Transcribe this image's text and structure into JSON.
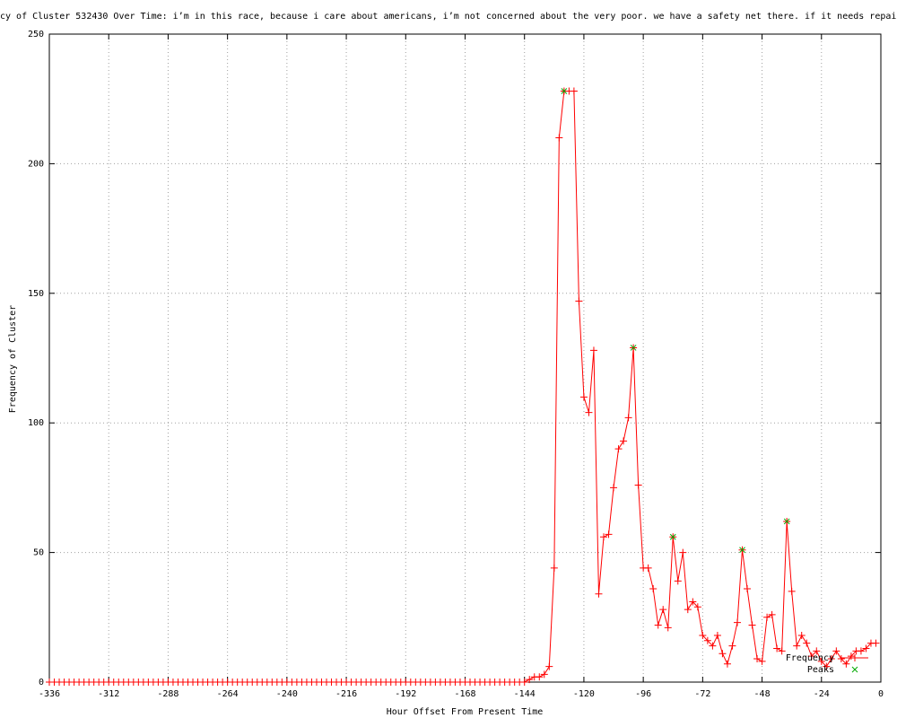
{
  "chart_data": {
    "type": "line",
    "title": "cy of Cluster 532430 Over Time: i’m in this race, because i care about americans, i’m not concerned about the very poor. we have a safety net there. if it needs repair",
    "x_label": "Hour Offset From Present Time",
    "y_label": "Frequency of Cluster",
    "xlim": [
      -336,
      0
    ],
    "ylim": [
      0,
      250
    ],
    "xticks": [
      -336,
      -312,
      -288,
      -264,
      -240,
      -216,
      -192,
      -168,
      -144,
      -120,
      -96,
      -72,
      -48,
      -24,
      0
    ],
    "yticks": [
      0,
      50,
      100,
      150,
      200,
      250
    ],
    "grid": true,
    "legend": "lower right",
    "series": [
      {
        "name": "Frequency",
        "color": "#ff0000",
        "x": [
          -336,
          -334,
          -332,
          -330,
          -328,
          -326,
          -324,
          -322,
          -320,
          -318,
          -316,
          -314,
          -312,
          -310,
          -308,
          -306,
          -304,
          -302,
          -300,
          -298,
          -296,
          -294,
          -292,
          -290,
          -288,
          -286,
          -284,
          -282,
          -280,
          -278,
          -276,
          -274,
          -272,
          -270,
          -268,
          -266,
          -264,
          -262,
          -260,
          -258,
          -256,
          -254,
          -252,
          -250,
          -248,
          -246,
          -244,
          -242,
          -240,
          -238,
          -236,
          -234,
          -232,
          -230,
          -228,
          -226,
          -224,
          -222,
          -220,
          -218,
          -216,
          -214,
          -212,
          -210,
          -208,
          -206,
          -204,
          -202,
          -200,
          -198,
          -196,
          -194,
          -192,
          -190,
          -188,
          -186,
          -184,
          -182,
          -180,
          -178,
          -176,
          -174,
          -172,
          -170,
          -168,
          -166,
          -164,
          -162,
          -160,
          -158,
          -156,
          -154,
          -152,
          -150,
          -148,
          -146,
          -144,
          -142,
          -140,
          -138,
          -136,
          -134,
          -132,
          -130,
          -128,
          -126,
          -124,
          -122,
          -120,
          -118,
          -116,
          -114,
          -112,
          -110,
          -108,
          -106,
          -104,
          -102,
          -100,
          -98,
          -96,
          -94,
          -92,
          -90,
          -88,
          -86,
          -84,
          -82,
          -80,
          -78,
          -76,
          -74,
          -72,
          -70,
          -68,
          -66,
          -64,
          -62,
          -60,
          -58,
          -56,
          -54,
          -52,
          -50,
          -48,
          -46,
          -44,
          -42,
          -40,
          -38,
          -36,
          -34,
          -32,
          -30,
          -28,
          -26,
          -24,
          -22,
          -20,
          -18,
          -16,
          -14,
          -12,
          -10,
          -8,
          -6,
          -4,
          -2
        ],
        "values": [
          0,
          0,
          0,
          0,
          0,
          0,
          0,
          0,
          0,
          0,
          0,
          0,
          0,
          0,
          0,
          0,
          0,
          0,
          0,
          0,
          0,
          0,
          0,
          0,
          0,
          0,
          0,
          0,
          0,
          0,
          0,
          0,
          0,
          0,
          0,
          0,
          0,
          0,
          0,
          0,
          0,
          0,
          0,
          0,
          0,
          0,
          0,
          0,
          0,
          0,
          0,
          0,
          0,
          0,
          0,
          0,
          0,
          0,
          0,
          0,
          0,
          0,
          0,
          0,
          0,
          0,
          0,
          0,
          0,
          0,
          0,
          0,
          0,
          0,
          0,
          0,
          0,
          0,
          0,
          0,
          0,
          0,
          0,
          0,
          0,
          0,
          0,
          0,
          0,
          0,
          0,
          0,
          0,
          0,
          0,
          0,
          0,
          1,
          2,
          2,
          3,
          6,
          44,
          210,
          228,
          228,
          228,
          147,
          110,
          104,
          128,
          34,
          56,
          57,
          75,
          90,
          93,
          102,
          129,
          76,
          44,
          44,
          36,
          22,
          28,
          21,
          56,
          39,
          50,
          28,
          31,
          29,
          18,
          16,
          14,
          18,
          11,
          7,
          14,
          23,
          51,
          36,
          22,
          9,
          8,
          25,
          26,
          13,
          12,
          62,
          35,
          14,
          18,
          15,
          10,
          12,
          8,
          6,
          9,
          12,
          9,
          7,
          10,
          12,
          12,
          13,
          15,
          15
        ]
      },
      {
        "name": "Peaks",
        "color": "#00aa00",
        "x": [
          -128,
          -100,
          -84,
          -56,
          -38
        ],
        "values": [
          228,
          129,
          56,
          51,
          62
        ]
      }
    ]
  }
}
